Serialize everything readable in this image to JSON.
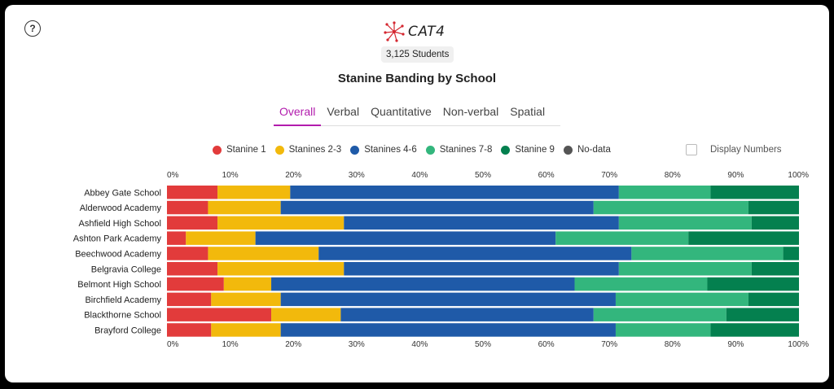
{
  "header": {
    "logo_text": "CAT4",
    "students": "3,125 Students",
    "title": "Stanine Banding by School"
  },
  "tabs": [
    "Overall",
    "Verbal",
    "Quantitative",
    "Non-verbal",
    "Spatial"
  ],
  "active_tab": "Overall",
  "legend": [
    {
      "label": "Stanine 1",
      "color": "#e23b3b"
    },
    {
      "label": "Stanines 2-3",
      "color": "#f2b90c"
    },
    {
      "label": "Stanines 4-6",
      "color": "#1f5aa8"
    },
    {
      "label": "Stanines 7-8",
      "color": "#33b67d"
    },
    {
      "label": "Stanine 9",
      "color": "#04804f"
    },
    {
      "label": "No-data",
      "color": "#555555"
    }
  ],
  "display_numbers": {
    "label": "Display Numbers",
    "checked": false
  },
  "icons": {
    "help": "question-circle-icon"
  },
  "chart_data": {
    "type": "bar",
    "orientation": "horizontal",
    "stacked": true,
    "categories": [
      "Abbey Gate School",
      "Alderwood Academy",
      "Ashfield High School",
      "Ashton Park Academy",
      "Beechwood Academy",
      "Belgravia College",
      "Belmont High School",
      "Birchfield Academy",
      "Blackthorne School",
      "Brayford College"
    ],
    "series": [
      {
        "name": "Stanine 1",
        "color": "#e23b3b",
        "values": [
          8,
          6.5,
          8,
          3,
          6.5,
          8,
          9,
          7,
          16.5,
          7
        ]
      },
      {
        "name": "Stanines 2-3",
        "color": "#f2b90c",
        "values": [
          11.5,
          11.5,
          20,
          11,
          17.5,
          20,
          7.5,
          11,
          11,
          11
        ]
      },
      {
        "name": "Stanines 4-6",
        "color": "#1f5aa8",
        "values": [
          52,
          49.5,
          43.5,
          47.5,
          49.5,
          43.5,
          48,
          53,
          40,
          53
        ]
      },
      {
        "name": "Stanines 7-8",
        "color": "#33b67d",
        "values": [
          14.5,
          24.5,
          21,
          21,
          24,
          21,
          21,
          21,
          21,
          15
        ]
      },
      {
        "name": "Stanine 9",
        "color": "#04804f",
        "values": [
          14,
          8,
          7.5,
          17.5,
          2.5,
          7.5,
          14.5,
          8,
          11.5,
          14
        ]
      },
      {
        "name": "No-data",
        "color": "#555555",
        "values": [
          0,
          0,
          0,
          0,
          0,
          0,
          0,
          0,
          0,
          0
        ]
      }
    ],
    "xlim": [
      0,
      100
    ],
    "ticks": [
      "0%",
      "10%",
      "20%",
      "30%",
      "40%",
      "50%",
      "60%",
      "70%",
      "80%",
      "90%",
      "100%"
    ]
  }
}
